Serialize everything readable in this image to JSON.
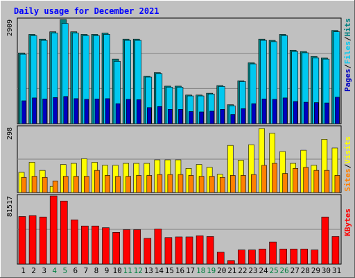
{
  "chart_data": [
    {
      "type": "bar",
      "title": "Daily usage for December 2021",
      "categories": [
        "1",
        "2",
        "3",
        "4",
        "5",
        "6",
        "7",
        "8",
        "9",
        "10",
        "11",
        "12",
        "13",
        "14",
        "15",
        "16",
        "17",
        "18",
        "19",
        "20",
        "21",
        "22",
        "23",
        "24",
        "25",
        "26",
        "27",
        "28",
        "29",
        "30",
        "31"
      ],
      "weekend_days": [
        "4",
        "5",
        "11",
        "12",
        "18",
        "19",
        "25",
        "26"
      ],
      "ymax_label": "2909",
      "ylim": [
        0,
        2909
      ],
      "legend": [
        "Pages",
        "Files",
        "Hits"
      ],
      "series": [
        {
          "name": "Hits",
          "color": "#008080",
          "values": [
            1975,
            2493,
            2362,
            2566,
            2909,
            2566,
            2493,
            2493,
            2530,
            1802,
            2362,
            2362,
            1327,
            1426,
            1049,
            1049,
            801,
            801,
            851,
            1064,
            530,
            1199,
            1704,
            2362,
            2326,
            2493,
            2051,
            2015,
            1876,
            1839,
            2604
          ]
        },
        {
          "name": "Files",
          "color": "#00c8f0",
          "values": [
            1938,
            2457,
            2326,
            2530,
            2800,
            2530,
            2457,
            2457,
            2493,
            1740,
            2326,
            2326,
            1300,
            1400,
            1020,
            1020,
            775,
            775,
            830,
            1040,
            500,
            1175,
            1668,
            2326,
            2290,
            2457,
            2015,
            1979,
            1839,
            1802,
            2566
          ]
        },
        {
          "name": "Pages",
          "color": "#0000c0",
          "values": [
            640,
            720,
            690,
            730,
            760,
            700,
            680,
            690,
            700,
            560,
            680,
            670,
            450,
            480,
            400,
            400,
            340,
            330,
            350,
            400,
            260,
            420,
            560,
            690,
            680,
            720,
            620,
            600,
            590,
            580,
            740
          ]
        }
      ]
    },
    {
      "type": "bar",
      "ymax_label": "298",
      "ylim": [
        0,
        298
      ],
      "legend": [
        "Sites",
        "Visits"
      ],
      "series": [
        {
          "name": "Visits",
          "color": "#ffff00",
          "values": [
            92,
            138,
            101,
            28,
            128,
            133,
            154,
            138,
            124,
            124,
            133,
            133,
            133,
            149,
            149,
            149,
            110,
            128,
            115,
            83,
            215,
            147,
            218,
            292,
            270,
            187,
            133,
            193,
            124,
            243,
            203
          ]
        },
        {
          "name": "Sites",
          "color": "#ff8000",
          "values": [
            69,
            74,
            69,
            53,
            74,
            74,
            74,
            101,
            78,
            74,
            74,
            78,
            78,
            82,
            82,
            82,
            78,
            74,
            74,
            69,
            78,
            78,
            82,
            124,
            133,
            87,
            110,
            115,
            101,
            101,
            78
          ]
        }
      ]
    },
    {
      "type": "bar",
      "ymax_label": "81517",
      "ylim": [
        0,
        81517
      ],
      "legend": [
        "KBytes"
      ],
      "series": [
        {
          "name": "KBytes",
          "color": "#ff0000",
          "values": [
            57000,
            58000,
            56400,
            81517,
            75500,
            53000,
            45600,
            45600,
            43600,
            38000,
            41200,
            41200,
            30800,
            42000,
            31800,
            32500,
            32500,
            34000,
            33000,
            14200,
            4300,
            17000,
            17000,
            18100,
            26500,
            18100,
            18100,
            18100,
            17000,
            56400,
            33000
          ]
        }
      ]
    }
  ]
}
